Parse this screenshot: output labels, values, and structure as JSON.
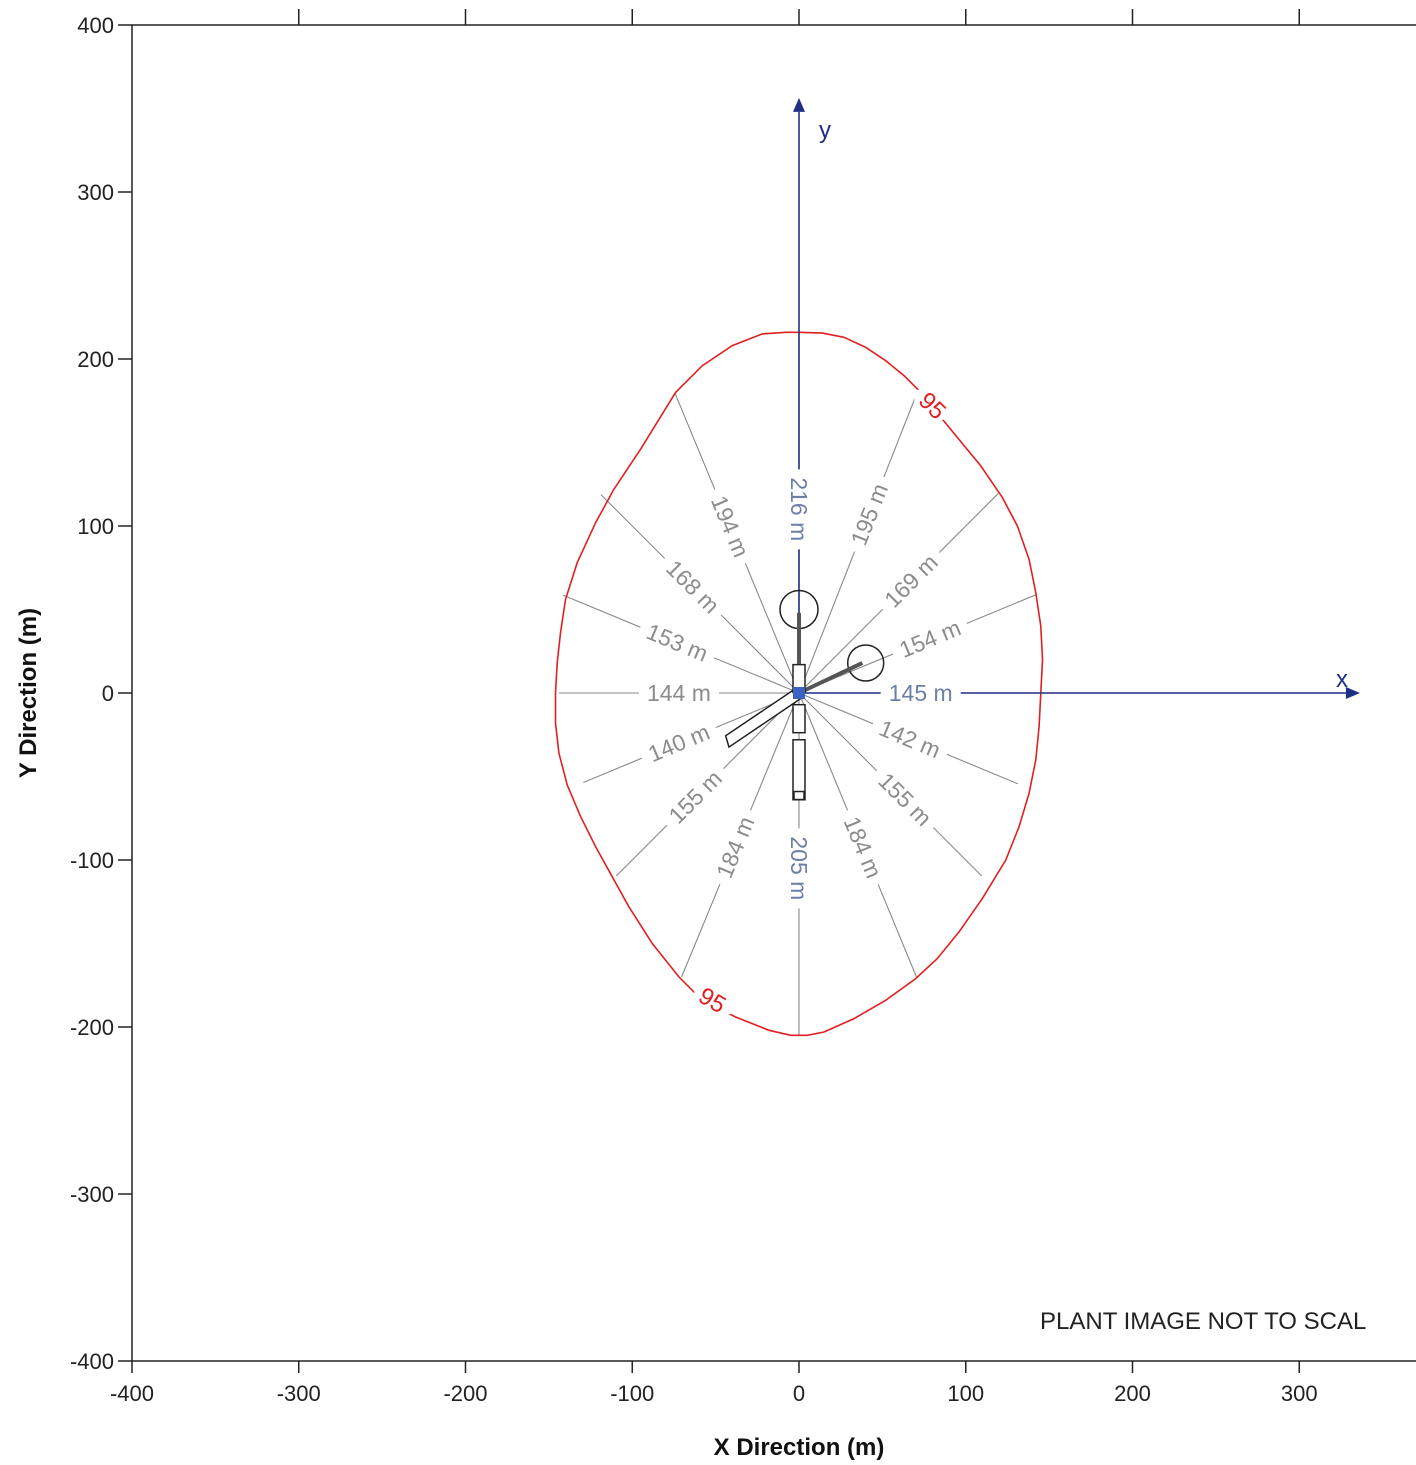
{
  "chart_data": {
    "type": "scatter",
    "xlabel": "X Direction (m)",
    "ylabel": "Y Direction (m)",
    "xlim": [
      -400,
      370
    ],
    "ylim": [
      -400,
      400
    ],
    "x_ticks": [
      -400,
      -300,
      -200,
      -100,
      0,
      100,
      200,
      300
    ],
    "y_ticks": [
      -400,
      -300,
      -200,
      -100,
      0,
      100,
      200,
      300,
      400
    ],
    "x_tick_labels": [
      "-400",
      "-300",
      "-200",
      "-100",
      "0",
      "100",
      "200",
      "300"
    ],
    "y_tick_labels": [
      "-400",
      "-300",
      "-200",
      "-100",
      "0",
      "100",
      "200",
      "300",
      "400"
    ],
    "top_ticks": [
      -300,
      -200,
      -100,
      0,
      100,
      200,
      300
    ],
    "grid": false,
    "contour": {
      "level_label": "95",
      "color": "#e02020",
      "points": [
        [
          0,
          216
        ],
        [
          14,
          215.5
        ],
        [
          27,
          213
        ],
        [
          40,
          207
        ],
        [
          52,
          199
        ],
        [
          63,
          190
        ],
        [
          72,
          181
        ],
        [
          81,
          170
        ],
        [
          95,
          153
        ],
        [
          109,
          136
        ],
        [
          122,
          117
        ],
        [
          131,
          100
        ],
        [
          138,
          80
        ],
        [
          142,
          60
        ],
        [
          145,
          40
        ],
        [
          146,
          20
        ],
        [
          145,
          0
        ],
        [
          144,
          -20
        ],
        [
          142,
          -40
        ],
        [
          138,
          -60
        ],
        [
          132,
          -80
        ],
        [
          124,
          -100
        ],
        [
          110,
          -123
        ],
        [
          96,
          -143
        ],
        [
          83,
          -159
        ],
        [
          70,
          -171
        ],
        [
          52,
          -184
        ],
        [
          33,
          -195
        ],
        [
          15,
          -203
        ],
        [
          5,
          -205
        ],
        [
          -5,
          -205
        ],
        [
          -18,
          -202
        ],
        [
          -38,
          -194
        ],
        [
          -58,
          -184
        ],
        [
          -72,
          -170
        ],
        [
          -88,
          -150
        ],
        [
          -102,
          -128
        ],
        [
          -112,
          -110
        ],
        [
          -122,
          -92
        ],
        [
          -131,
          -74
        ],
        [
          -139,
          -55
        ],
        [
          -144,
          -36
        ],
        [
          -146,
          -18
        ],
        [
          -146,
          0
        ],
        [
          -145,
          18
        ],
        [
          -143,
          36
        ],
        [
          -140,
          56
        ],
        [
          -133,
          78
        ],
        [
          -122,
          102
        ],
        [
          -111,
          122
        ],
        [
          -95,
          146
        ],
        [
          -74,
          180
        ],
        [
          -58,
          196
        ],
        [
          -40,
          208
        ],
        [
          -22,
          215
        ],
        [
          -8,
          216
        ],
        [
          0,
          216
        ]
      ],
      "label_positions": [
        [
          80,
          172
        ],
        [
          -52,
          -184
        ]
      ]
    },
    "rays": [
      {
        "label": "216 m",
        "distance": 216,
        "angle_deg": 90,
        "label_at": 110,
        "label_color": "blue"
      },
      {
        "label": "195 m",
        "distance": 195,
        "angle_deg": 68.5,
        "label_at": 115,
        "label_color": "gray"
      },
      {
        "label": "169 m",
        "distance": 169,
        "angle_deg": 45,
        "label_at": 95,
        "label_color": "gray"
      },
      {
        "label": "154 m",
        "distance": 154,
        "angle_deg": 22.5,
        "label_at": 85,
        "label_color": "gray"
      },
      {
        "label": "145 m",
        "distance": 145,
        "angle_deg": 0,
        "label_at": 73,
        "label_color": "blue"
      },
      {
        "label": "142 m",
        "distance": 142,
        "angle_deg": -22.5,
        "label_at": 72,
        "label_color": "gray"
      },
      {
        "label": "155 m",
        "distance": 155,
        "angle_deg": -45,
        "label_at": 90,
        "label_color": "gray"
      },
      {
        "label": "184 m",
        "distance": 184,
        "angle_deg": -67.5,
        "label_at": 100,
        "label_color": "gray"
      },
      {
        "label": "205 m",
        "distance": 205,
        "angle_deg": -90,
        "label_at": 105,
        "label_color": "blue"
      },
      {
        "label": "184 m",
        "distance": 184,
        "angle_deg": -112.5,
        "label_at": 100,
        "label_color": "gray"
      },
      {
        "label": "155 m",
        "distance": 155,
        "angle_deg": -135,
        "label_at": 88,
        "label_color": "gray"
      },
      {
        "label": "140 m",
        "distance": 140,
        "angle_deg": -157.5,
        "label_at": 78,
        "label_color": "gray"
      },
      {
        "label": "144 m",
        "distance": 144,
        "angle_deg": 180,
        "label_at": 72,
        "label_color": "gray"
      },
      {
        "label": "153 m",
        "distance": 153,
        "angle_deg": 157.5,
        "label_at": 79,
        "label_color": "gray"
      },
      {
        "label": "168 m",
        "distance": 168,
        "angle_deg": 135,
        "label_at": 90,
        "label_color": "gray"
      },
      {
        "label": "194 m",
        "distance": 194,
        "angle_deg": 112.5,
        "label_at": 108,
        "label_color": "gray"
      }
    ],
    "local_axes": {
      "x_label": "x",
      "y_label": "y",
      "color": "#1f2f86",
      "x_end": 328,
      "y_end": 348
    },
    "note": "PLANT IMAGE NOT TO SCAL"
  }
}
